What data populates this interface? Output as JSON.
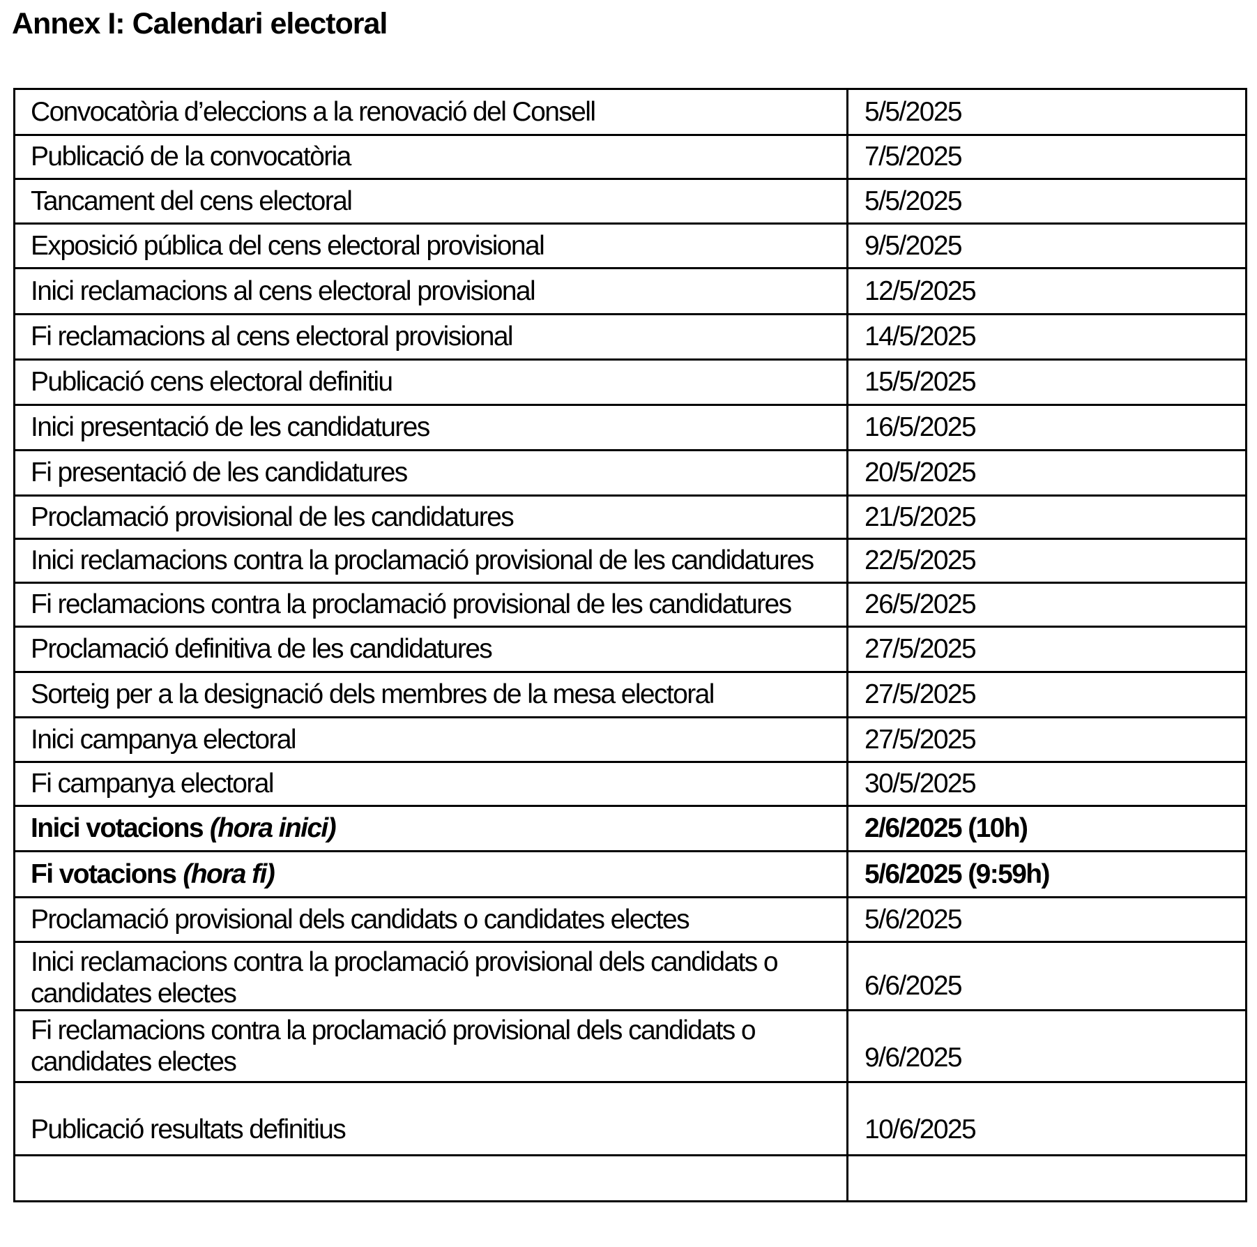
{
  "title": "Annex I: Calendari electoral",
  "colors": {
    "text": "#000000",
    "border": "#000000",
    "background": "#ffffff"
  },
  "table": {
    "columns": [
      "event",
      "date"
    ],
    "rows": [
      {
        "event": "Convocatòria d’eleccions a la renovació del Consell",
        "date": "5/5/2025"
      },
      {
        "event": "Publicació de la convocatòria",
        "date": "7/5/2025"
      },
      {
        "event": "Tancament del cens electoral",
        "date": "5/5/2025"
      },
      {
        "event": "Exposició pública del cens electoral provisional",
        "date": "9/5/2025"
      },
      {
        "event": "Inici reclamacions al cens electoral provisional",
        "date": "12/5/2025"
      },
      {
        "event": "Fi reclamacions al cens electoral provisional",
        "date": "14/5/2025"
      },
      {
        "event": "Publicació cens electoral definitiu",
        "date": "15/5/2025"
      },
      {
        "event": "Inici presentació de les candidatures",
        "date": "16/5/2025"
      },
      {
        "event": "Fi presentació de les candidatures",
        "date": "20/5/2025"
      },
      {
        "event": "Proclamació provisional de les candidatures",
        "date": "21/5/2025"
      },
      {
        "event": "Inici reclamacions contra la proclamació provisional de les candidatures",
        "date": "22/5/2025"
      },
      {
        "event": "Fi reclamacions contra la proclamació provisional de les candidatures",
        "date": "26/5/2025"
      },
      {
        "event": "Proclamació definitiva de les candidatures",
        "date": "27/5/2025"
      },
      {
        "event": "Sorteig per a la designació dels membres de la mesa electoral",
        "date": "27/5/2025"
      },
      {
        "event": "Inici campanya electoral",
        "date": "27/5/2025"
      },
      {
        "event": "Fi campanya electoral",
        "date": "30/5/2025"
      },
      {
        "event": "Inici votacions",
        "note": "(hora inici)",
        "date": "2/6/2025 (10h)",
        "bold": true
      },
      {
        "event": "Fi votacions",
        "note": "(hora fi)",
        "date": "5/6/2025 (9:59h)",
        "bold": true
      },
      {
        "event": "Proclamació provisional dels candidats o candidates electes",
        "date": "5/6/2025"
      },
      {
        "event": "Inici reclamacions contra la proclamació provisional dels candidats o candidates electes",
        "date": "6/6/2025"
      },
      {
        "event": "Fi reclamacions contra la proclamació provisional dels candidats o candidates electes",
        "date": "9/6/2025"
      },
      {
        "event": "Publicació resultats definitius",
        "date": "10/6/2025"
      },
      {
        "event": "",
        "date": ""
      }
    ]
  }
}
